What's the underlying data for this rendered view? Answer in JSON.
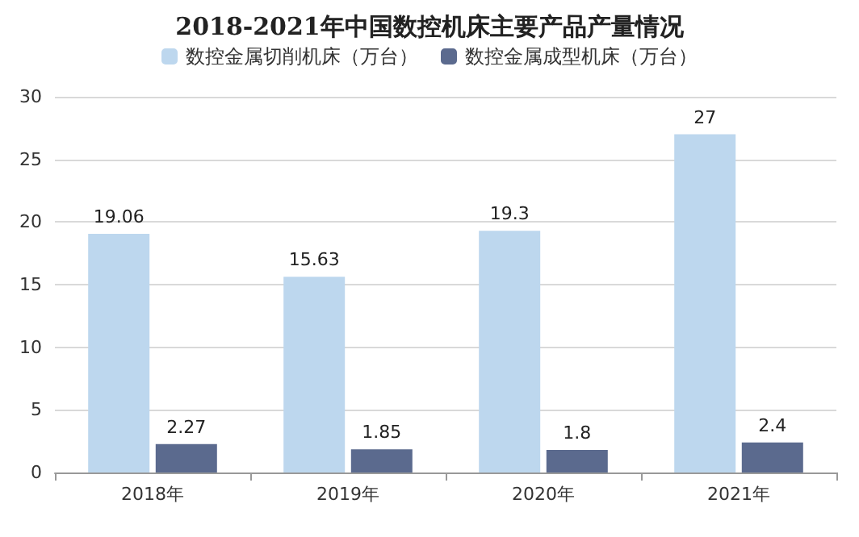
{
  "chart_data": {
    "type": "bar",
    "title": "2018-2021年中国数控机床主要产品产量情况",
    "categories": [
      "2018年",
      "2019年",
      "2020年",
      "2021年"
    ],
    "series": [
      {
        "name": "数控金属切削机床（万台）",
        "color": "#bdd7ee",
        "values": [
          19.06,
          15.63,
          19.3,
          27
        ]
      },
      {
        "name": "数控金属成型机床（万台）",
        "color": "#5b6a8e",
        "values": [
          2.27,
          1.85,
          1.8,
          2.4
        ]
      }
    ],
    "ylim": [
      0,
      30
    ],
    "yticks": [
      0,
      5,
      10,
      15,
      20,
      25,
      30
    ],
    "grid": "y",
    "legend": "top",
    "data_labels": true
  }
}
